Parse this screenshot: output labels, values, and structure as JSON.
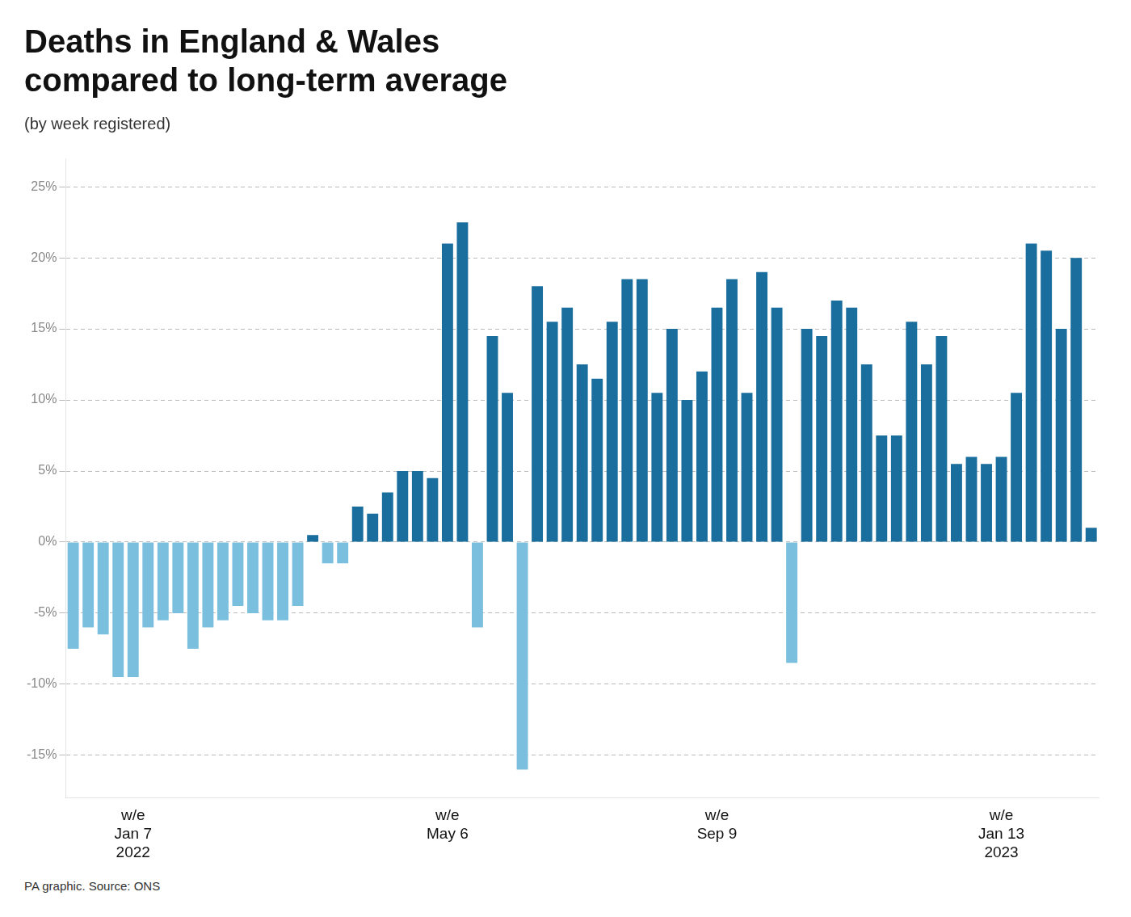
{
  "chart_data": {
    "type": "bar",
    "title": "Deaths in England & Wales\ncompared to long-term average",
    "subtitle": "(by week registered)",
    "annotations": [
      "PA graphic. Source: ONS"
    ],
    "categories": [
      null,
      null,
      null,
      null,
      "w/e\nJan 7\n2022",
      null,
      null,
      null,
      null,
      null,
      null,
      null,
      null,
      null,
      null,
      null,
      null,
      null,
      null,
      null,
      null,
      null,
      null,
      null,
      null,
      "w/e\nMay 6",
      null,
      null,
      null,
      null,
      null,
      null,
      null,
      null,
      null,
      null,
      null,
      null,
      null,
      null,
      null,
      null,
      null,
      "w/e\nSep 9",
      null,
      null,
      null,
      null,
      null,
      null,
      null,
      null,
      null,
      null,
      null,
      null,
      null,
      null,
      null,
      null,
      null,
      null,
      "w/e\nJan 13\n2023",
      null,
      null,
      null,
      null,
      null,
      null
    ],
    "values": [
      -7.5,
      -6.0,
      -6.5,
      -9.5,
      -9.5,
      -6.0,
      -5.5,
      -5.0,
      -7.5,
      -6.0,
      -5.5,
      -4.5,
      -5.0,
      -5.5,
      -5.5,
      -4.5,
      0.5,
      -1.5,
      -1.5,
      2.5,
      2.0,
      3.5,
      5.0,
      5.0,
      4.5,
      21.0,
      22.5,
      -6.0,
      14.5,
      10.5,
      -16.0,
      18.0,
      15.5,
      16.5,
      12.5,
      11.5,
      15.5,
      18.5,
      18.5,
      10.5,
      15.0,
      10.0,
      12.0,
      16.5,
      18.5,
      10.5,
      19.0,
      16.5,
      -8.5,
      15.0,
      14.5,
      17.0,
      16.5,
      12.5,
      7.5,
      7.5,
      15.5,
      12.5,
      14.5,
      5.5,
      6.0,
      5.5,
      6.0,
      10.5,
      21.0,
      20.5,
      15.0,
      20.0,
      1.0
    ],
    "colors": [
      "#7bbfde",
      "#7bbfde",
      "#7bbfde",
      "#7bbfde",
      "#7bbfde",
      "#7bbfde",
      "#7bbfde",
      "#7bbfde",
      "#7bbfde",
      "#7bbfde",
      "#7bbfde",
      "#7bbfde",
      "#7bbfde",
      "#7bbfde",
      "#7bbfde",
      "#7bbfde",
      "#1a6e9e",
      "#7bbfde",
      "#7bbfde",
      "#1a6e9e",
      "#1a6e9e",
      "#1a6e9e",
      "#1a6e9e",
      "#1a6e9e",
      "#1a6e9e",
      "#1a6e9e",
      "#1a6e9e",
      "#7bbfde",
      "#1a6e9e",
      "#1a6e9e",
      "#7bbfde",
      "#1a6e9e",
      "#1a6e9e",
      "#1a6e9e",
      "#1a6e9e",
      "#1a6e9e",
      "#1a6e9e",
      "#1a6e9e",
      "#1a6e9e",
      "#1a6e9e",
      "#1a6e9e",
      "#1a6e9e",
      "#1a6e9e",
      "#1a6e9e",
      "#1a6e9e",
      "#1a6e9e",
      "#1a6e9e",
      "#1a6e9e",
      "#7bbfde",
      "#1a6e9e",
      "#1a6e9e",
      "#1a6e9e",
      "#1a6e9e",
      "#1a6e9e",
      "#1a6e9e",
      "#1a6e9e",
      "#1a6e9e",
      "#1a6e9e",
      "#1a6e9e",
      "#1a6e9e",
      "#1a6e9e",
      "#1a6e9e",
      "#1a6e9e",
      "#1a6e9e",
      "#1a6e9e",
      "#1a6e9e",
      "#1a6e9e",
      "#1a6e9e",
      "#1a6e9e"
    ],
    "ylim": [
      -18,
      27
    ],
    "yticks": [
      {
        "value": -15,
        "label": "-15%"
      },
      {
        "value": -10,
        "label": "-10%"
      },
      {
        "value": -5,
        "label": "-5%"
      },
      {
        "value": 0,
        "label": "0%"
      },
      {
        "value": 5,
        "label": "5%"
      },
      {
        "value": 10,
        "label": "10%"
      },
      {
        "value": 15,
        "label": "15%"
      },
      {
        "value": 20,
        "label": "20%"
      },
      {
        "value": 25,
        "label": "25%"
      }
    ],
    "grid": true
  }
}
